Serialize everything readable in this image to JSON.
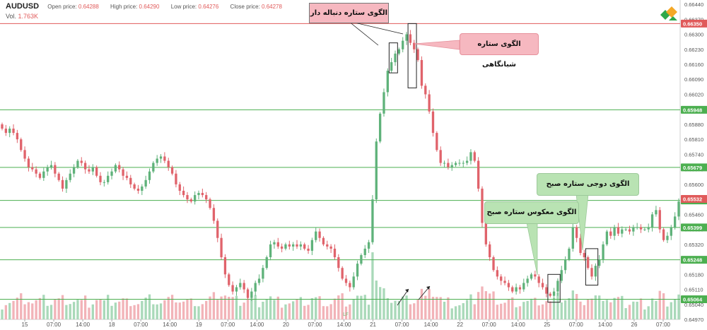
{
  "header": {
    "symbol": "AUDUSD",
    "open_label": "Open price:",
    "open_value": "0.64288",
    "high_label": "High price:",
    "high_value": "0.64290",
    "low_label": "Low price:",
    "low_value": "0.64276",
    "close_label": "Close price:",
    "close_value": "0.64278",
    "vol_label": "Vol.",
    "vol_value": "1.763K"
  },
  "chart_data": {
    "type": "candlestick",
    "symbol": "AUDUSD",
    "ylim": [
      0.6497,
      0.6646
    ],
    "y_ticks": [
      "0.66440",
      "0.66370",
      "0.66300",
      "0.66230",
      "0.66160",
      "0.66090",
      "0.66020",
      "0.65950",
      "0.65880",
      "0.65810",
      "0.65740",
      "0.65670",
      "0.65600",
      "0.65530",
      "0.65460",
      "0.65390",
      "0.65320",
      "0.65250",
      "0.65180",
      "0.65110",
      "0.65040",
      "0.64970"
    ],
    "x_tick_labels": [
      "15",
      "07:00",
      "14:00",
      "18",
      "07:00",
      "14:00",
      "19",
      "07:00",
      "14:00",
      "20",
      "07:00",
      "14:00",
      "21",
      "07:00",
      "14:00",
      "22",
      "07:00",
      "14:00",
      "25",
      "07:00",
      "14:00",
      "26",
      "07:00"
    ],
    "horizontal_levels": [
      {
        "price": 0.6635,
        "label": "0.66350",
        "color": "#e05a5a"
      },
      {
        "price": 0.65948,
        "label": "0.65948",
        "color": "#4caf50"
      },
      {
        "price": 0.65679,
        "label": "0.65679",
        "color": "#4caf50"
      },
      {
        "price": 0.65525,
        "label": "0.65525",
        "color": "#4caf50"
      },
      {
        "price": 0.65399,
        "label": "0.65399",
        "color": "#4caf50"
      },
      {
        "price": 0.65248,
        "label": "0.65248",
        "color": "#4caf50"
      },
      {
        "price": 0.65064,
        "label": "0.65064",
        "color": "#4caf50"
      }
    ],
    "current_price": {
      "price": 0.65532,
      "label": "0.65532",
      "color": "#e05a5a"
    },
    "closes": [
      0.6586,
      0.6584,
      0.6586,
      0.6584,
      0.6581,
      0.6576,
      0.6572,
      0.6568,
      0.6567,
      0.6565,
      0.6563,
      0.6566,
      0.6568,
      0.6569,
      0.6565,
      0.6562,
      0.6558,
      0.6562,
      0.6565,
      0.6568,
      0.6571,
      0.657,
      0.6567,
      0.6566,
      0.6568,
      0.6564,
      0.6561,
      0.6561,
      0.6564,
      0.6566,
      0.6569,
      0.6567,
      0.6564,
      0.6563,
      0.656,
      0.6558,
      0.6557,
      0.6559,
      0.6562,
      0.6566,
      0.657,
      0.6572,
      0.6573,
      0.6571,
      0.6568,
      0.6565,
      0.656,
      0.6557,
      0.6555,
      0.6553,
      0.6552,
      0.6555,
      0.6556,
      0.6555,
      0.6553,
      0.6549,
      0.6543,
      0.6535,
      0.6526,
      0.6518,
      0.6513,
      0.651,
      0.6512,
      0.6514,
      0.6511,
      0.6507,
      0.651,
      0.6514,
      0.6516,
      0.6521,
      0.6526,
      0.6532,
      0.6533,
      0.6531,
      0.653,
      0.6532,
      0.6531,
      0.6532,
      0.6531,
      0.6532,
      0.653,
      0.6529,
      0.6534,
      0.6538,
      0.6535,
      0.6532,
      0.6531,
      0.653,
      0.6526,
      0.6521,
      0.6516,
      0.6514,
      0.6512,
      0.6517,
      0.6523,
      0.6527,
      0.653,
      0.6533,
      0.6553,
      0.658,
      0.6593,
      0.6603,
      0.6613,
      0.6617,
      0.6621,
      0.6623,
      0.6627,
      0.663,
      0.6626,
      0.6623,
      0.6618,
      0.6606,
      0.6602,
      0.6594,
      0.6584,
      0.6576,
      0.657,
      0.657,
      0.6568,
      0.6569,
      0.657,
      0.657,
      0.657,
      0.6571,
      0.6575,
      0.6571,
      0.6558,
      0.6542,
      0.6532,
      0.6526,
      0.652,
      0.6517,
      0.6515,
      0.6514,
      0.6512,
      0.651,
      0.6512,
      0.6511,
      0.6514,
      0.6516,
      0.6518,
      0.6517,
      0.6514,
      0.6512,
      0.6509,
      0.6508,
      0.651,
      0.6515,
      0.652,
      0.6525,
      0.653,
      0.654,
      0.6535,
      0.6528,
      0.6526,
      0.6521,
      0.6517,
      0.6522,
      0.6525,
      0.6532,
      0.6538,
      0.6536,
      0.654,
      0.6537,
      0.6539,
      0.6539,
      0.6538,
      0.654,
      0.654,
      0.6539,
      0.6539,
      0.654,
      0.6546,
      0.6548,
      0.6539,
      0.6534,
      0.6536,
      0.654,
      0.6545,
      0.6552
    ],
    "candle_span_x_tick_index": [
      0,
      22
    ],
    "annotations": [
      {
        "text": "الگوی ستاره دنباله دار",
        "style": "pink-box"
      },
      {
        "text": "الگوی ستاره شبانگاهی",
        "style": "pink-callout"
      },
      {
        "text": "الگوی معکوس ستاره صبح",
        "style": "green-callout"
      },
      {
        "text": "الگوی دوجی ستاره صبح",
        "style": "green-callout"
      }
    ]
  },
  "colors": {
    "bull": "#5fb27a",
    "bear": "#e0636b",
    "bull_vol": "#a9d9b9",
    "bear_vol": "#f2b3b8",
    "grid": "#e6e6e6",
    "pink_box": "#f6b8c0",
    "green_box": "#b9e3b3"
  },
  "icons": {
    "logo": "litefinance-logo-icon",
    "watermark": "litefinance-watermark-icon"
  }
}
